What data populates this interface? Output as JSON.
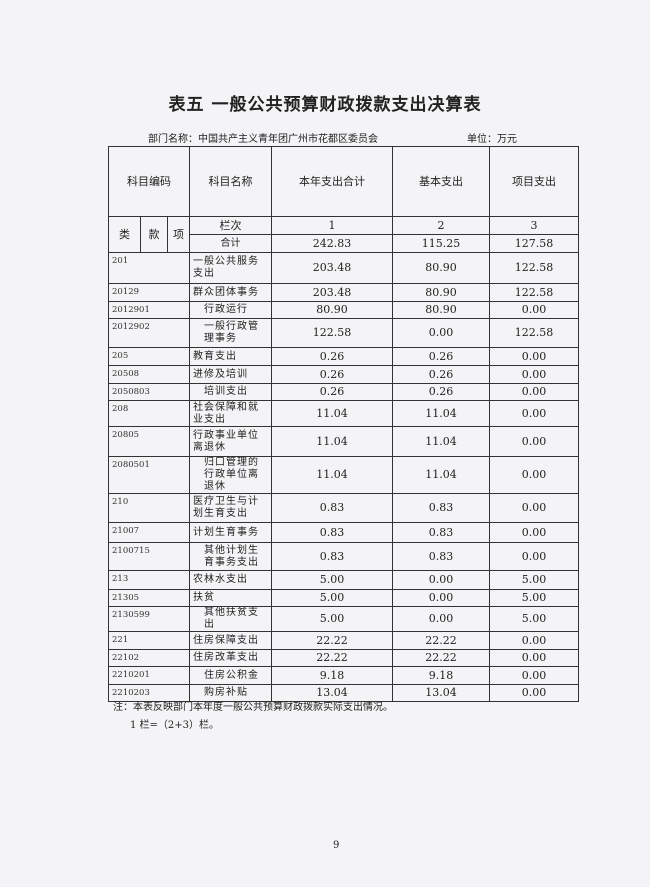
{
  "title": "表五  一般公共预算财政拨款支出决算表",
  "department": "部门名称：中国共产主义青年团广州市花都区委员会",
  "unit": "单位：万元",
  "headers": {
    "code": "科目编码",
    "name": "科目名称",
    "total": "本年支出合计",
    "basic": "基本支出",
    "project": "项目支出",
    "lei": "类",
    "kuan": "款",
    "xiang": "项",
    "lanci": "栏次",
    "col1": "1",
    "col2": "2",
    "col3": "3",
    "heji": "合计"
  },
  "totals": {
    "total": "242.83",
    "basic": "115.25",
    "project": "127.58"
  },
  "rows": [
    {
      "code": "201",
      "name": "一般公共服务支出",
      "total": "203.48",
      "basic": "80.90",
      "project": "122.58"
    },
    {
      "code": "20129",
      "name": "群众团体事务",
      "total": "203.48",
      "basic": "80.90",
      "project": "122.58"
    },
    {
      "code": "2012901",
      "name": "行政运行",
      "total": "80.90",
      "basic": "80.90",
      "project": "0.00"
    },
    {
      "code": "2012902",
      "name": "一般行政管理事务",
      "total": "122.58",
      "basic": "0.00",
      "project": "122.58"
    },
    {
      "code": "205",
      "name": "教育支出",
      "total": "0.26",
      "basic": "0.26",
      "project": "0.00"
    },
    {
      "code": "20508",
      "name": "进修及培训",
      "total": "0.26",
      "basic": "0.26",
      "project": "0.00"
    },
    {
      "code": "2050803",
      "name": "培训支出",
      "total": "0.26",
      "basic": "0.26",
      "project": "0.00"
    },
    {
      "code": "208",
      "name": "社会保障和就业支出",
      "total": "11.04",
      "basic": "11.04",
      "project": "0.00"
    },
    {
      "code": "20805",
      "name": "行政事业单位离退休",
      "total": "11.04",
      "basic": "11.04",
      "project": "0.00"
    },
    {
      "code": "2080501",
      "name": "归口管理的行政单位离退休",
      "total": "11.04",
      "basic": "11.04",
      "project": "0.00"
    },
    {
      "code": "210",
      "name": "医疗卫生与计划生育支出",
      "total": "0.83",
      "basic": "0.83",
      "project": "0.00"
    },
    {
      "code": "21007",
      "name": "计划生育事务",
      "total": "0.83",
      "basic": "0.83",
      "project": "0.00"
    },
    {
      "code": "2100715",
      "name": "其他计划生育事务支出",
      "total": "0.83",
      "basic": "0.83",
      "project": "0.00"
    },
    {
      "code": "213",
      "name": "农林水支出",
      "total": "5.00",
      "basic": "0.00",
      "project": "5.00"
    },
    {
      "code": "21305",
      "name": "扶贫",
      "total": "5.00",
      "basic": "0.00",
      "project": "5.00"
    },
    {
      "code": "2130599",
      "name": "其他扶贫支出",
      "total": "5.00",
      "basic": "0.00",
      "project": "5.00"
    },
    {
      "code": "221",
      "name": "住房保障支出",
      "total": "22.22",
      "basic": "22.22",
      "project": "0.00"
    },
    {
      "code": "22102",
      "name": "住房改革支出",
      "total": "22.22",
      "basic": "22.22",
      "project": "0.00"
    },
    {
      "code": "2210201",
      "name": "住房公积金",
      "total": "9.18",
      "basic": "9.18",
      "project": "0.00"
    },
    {
      "code": "2210203",
      "name": "购房补贴",
      "total": "13.04",
      "basic": "13.04",
      "project": "0.00"
    }
  ],
  "note": "注：本表反映部门本年度一般公共预算财政拨款实际支出情况。",
  "note2": "1 栏=（2+3）栏。",
  "page": "9"
}
